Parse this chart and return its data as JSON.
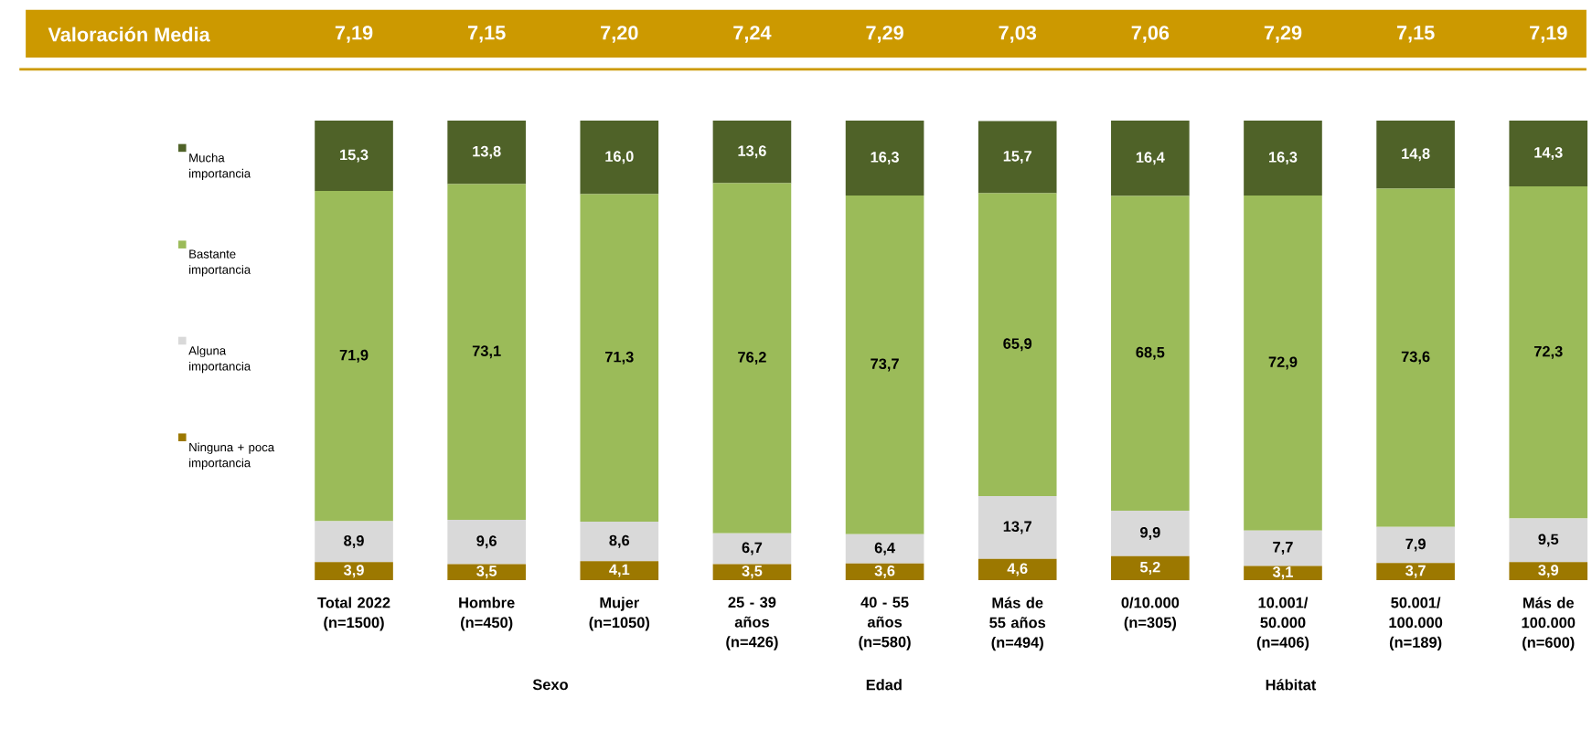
{
  "chart_data": {
    "type": "bar",
    "stacked": true,
    "title": "Valoración Media",
    "categories": [
      "Total 2022 (n=1500)",
      "Hombre (n=450)",
      "Mujer (n=1050)",
      "25 - 39 años (n=426)",
      "40 - 55 años (n=580)",
      "Más de 55 años (n=494)",
      "0/10.000 (n=305)",
      "10.001/ 50.000 (n=406)",
      "50.001/ 100.000 (n=189)",
      "Más de 100.000 (n=600)"
    ],
    "series": [
      {
        "name": "Ninguna + poca importancia",
        "color": "#9c7800",
        "values": [
          3.9,
          3.5,
          4.1,
          3.5,
          3.6,
          4.6,
          5.2,
          3.1,
          3.7,
          3.9
        ],
        "value_labels": [
          "3,9",
          "3,5",
          "4,1",
          "3,5",
          "3,6",
          "4,6",
          "5,2",
          "3,1",
          "3,7",
          "3,9"
        ]
      },
      {
        "name": "Alguna importancia",
        "color": "#d9d9d9",
        "values": [
          8.9,
          9.6,
          8.6,
          6.7,
          6.4,
          13.7,
          9.9,
          7.7,
          7.9,
          9.5
        ],
        "value_labels": [
          "8,9",
          "9,6",
          "8,6",
          "6,7",
          "6,4",
          "13,7",
          "9,9",
          "7,7",
          "7,9",
          "9,5"
        ]
      },
      {
        "name": "Bastante importancia",
        "color": "#9bbb59",
        "values": [
          71.9,
          73.1,
          71.3,
          76.2,
          73.7,
          65.9,
          68.5,
          72.9,
          73.6,
          72.3
        ],
        "value_labels": [
          "71,9",
          "73,1",
          "71,3",
          "76,2",
          "73,7",
          "65,9",
          "68,5",
          "72,9",
          "73,6",
          "72,3"
        ]
      },
      {
        "name": "Mucha importancia",
        "color": "#4f6228",
        "values": [
          15.3,
          13.8,
          16.0,
          13.6,
          16.3,
          15.7,
          16.4,
          16.3,
          14.8,
          14.3
        ],
        "value_labels": [
          "15,3",
          "13,8",
          "16,0",
          "13,6",
          "16,3",
          "15,7",
          "16,4",
          "16,3",
          "14,8",
          "14,3"
        ]
      }
    ],
    "legend": "left",
    "annotations": [
      "7,19",
      "7,15",
      "7,20",
      "7,24",
      "7,29",
      "7,03",
      "7,06",
      "7,29",
      "7,15",
      "7,19",
      "Sexo",
      "Edad",
      "Hábitat"
    ]
  }
}
